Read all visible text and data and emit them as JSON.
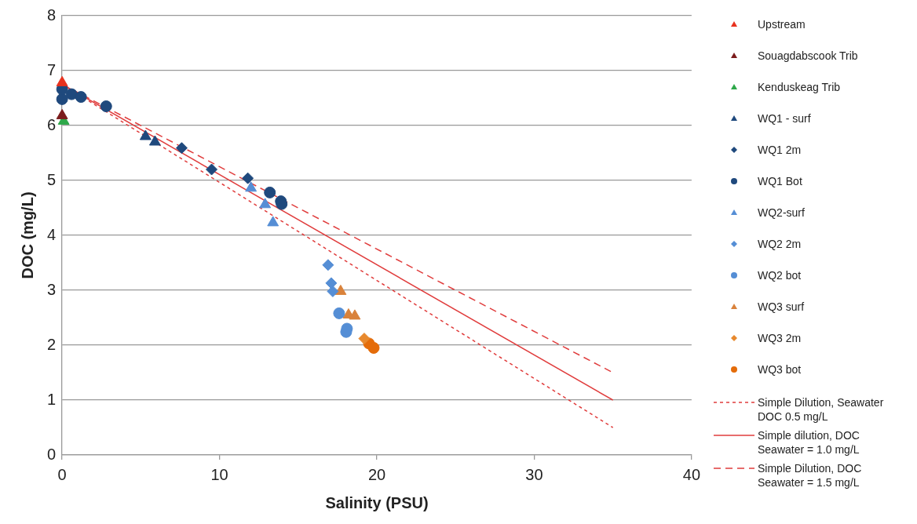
{
  "chart_data": {
    "type": "scatter",
    "xlabel": "Salinity (PSU)",
    "ylabel": "DOC (mg/L)",
    "xlim": [
      0,
      40
    ],
    "xticks": [
      0,
      10,
      20,
      30,
      40
    ],
    "ylim": [
      0,
      8
    ],
    "yticks": [
      0,
      1,
      2,
      3,
      4,
      5,
      6,
      7,
      8
    ],
    "grid": "y",
    "legend": "right",
    "series": [
      {
        "name": "Upstream",
        "color": "#e8321e",
        "marker": "triangle",
        "x": [
          0
        ],
        "values": [
          6.78
        ]
      },
      {
        "name": "Souagdabscook Trib",
        "color": "#7b1c1c",
        "marker": "triangle",
        "x": [
          0
        ],
        "values": [
          6.18
        ]
      },
      {
        "name": "Kenduskeag Trib",
        "color": "#2ea84a",
        "marker": "triangle",
        "x": [
          0.1
        ],
        "values": [
          6.08
        ]
      },
      {
        "name": "WQ1 - surf",
        "color": "#1f497d",
        "marker": "triangle",
        "x": [
          5.3,
          5.9
        ],
        "values": [
          5.8,
          5.7
        ]
      },
      {
        "name": "WQ1 2m",
        "color": "#1f497d",
        "marker": "diamond",
        "x": [
          7.6,
          9.5,
          11.8
        ],
        "values": [
          5.59,
          5.2,
          5.04
        ]
      },
      {
        "name": "WQ1 Bot",
        "color": "#1f497d",
        "marker": "circle",
        "x": [
          0,
          0,
          0.6,
          1.2,
          2.8,
          13.2,
          13.9,
          13.95
        ],
        "values": [
          6.48,
          6.66,
          6.57,
          6.52,
          6.35,
          4.78,
          4.62,
          4.57
        ]
      },
      {
        "name": "WQ2-surf",
        "color": "#558ed5",
        "marker": "triangle",
        "x": [
          12,
          12.9,
          13.4
        ],
        "values": [
          4.86,
          4.56,
          4.23
        ]
      },
      {
        "name": "WQ2 2m",
        "color": "#558ed5",
        "marker": "diamond",
        "x": [
          16.9,
          17.1,
          17.2
        ],
        "values": [
          3.46,
          3.13,
          2.98
        ]
      },
      {
        "name": "WQ2 bot",
        "color": "#558ed5",
        "marker": "circle",
        "x": [
          17.6,
          18.1,
          18.05
        ],
        "values": [
          2.58,
          2.3,
          2.24
        ]
      },
      {
        "name": "WQ3 surf",
        "color": "#d9823b",
        "marker": "triangle",
        "x": [
          17.7,
          18.2,
          18.6
        ],
        "values": [
          2.98,
          2.55,
          2.53
        ]
      },
      {
        "name": "WQ3 2m",
        "color": "#e8892d",
        "marker": "diamond",
        "x": [
          19.2
        ],
        "values": [
          2.12
        ]
      },
      {
        "name": "WQ3 bot",
        "color": "#e46c0a",
        "marker": "circle",
        "x": [
          19.5,
          19.8
        ],
        "values": [
          2.03,
          1.95
        ]
      },
      {
        "name": "Simple Dilution, Seawater DOC 0.5 mg/L",
        "type": "line",
        "color": "#e03c3c",
        "line_style": "dotted",
        "marker": "none",
        "x": [
          0,
          35
        ],
        "values": [
          6.75,
          0.5
        ]
      },
      {
        "name": "Simple dilution, DOC Seawater = 1.0 mg/L",
        "type": "line",
        "color": "#e03c3c",
        "line_style": "solid",
        "marker": "none",
        "x": [
          0,
          35
        ],
        "values": [
          6.75,
          1.0
        ]
      },
      {
        "name": "Simple Dilution, DOC Seawater = 1.5 mg/L",
        "type": "line",
        "color": "#e03c3c",
        "line_style": "dashed",
        "marker": "none",
        "x": [
          0,
          35
        ],
        "values": [
          6.75,
          1.5
        ]
      }
    ]
  }
}
